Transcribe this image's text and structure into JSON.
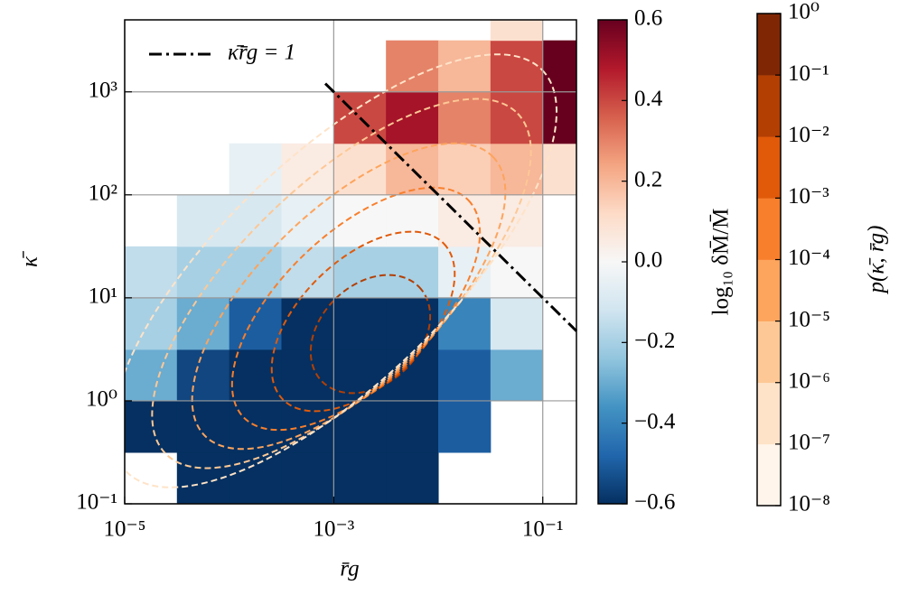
{
  "chart_data": {
    "type": "heatmap",
    "xlabel": "r̄g",
    "ylabel": "κ̄",
    "xscale": "log",
    "yscale": "log",
    "xlim": [
      1e-05,
      0.21
    ],
    "ylim": [
      0.1,
      5000
    ],
    "xticks": [
      {
        "value": 1e-05,
        "label": "10⁻⁵"
      },
      {
        "value": 0.001,
        "label": "10⁻³"
      },
      {
        "value": 0.1,
        "label": "10⁻¹"
      }
    ],
    "yticks": [
      {
        "value": 0.1,
        "label": "10⁻¹"
      },
      {
        "value": 1,
        "label": "10⁰"
      },
      {
        "value": 10,
        "label": "10¹"
      },
      {
        "value": 100,
        "label": "10²"
      },
      {
        "value": 1000,
        "label": "10³"
      }
    ],
    "grid": true,
    "heatmap": {
      "x_edges": [
        1e-05,
        3.16e-05,
        0.0001,
        0.000316,
        0.001,
        0.00316,
        0.01,
        0.0316,
        0.1,
        0.316
      ],
      "y_edges": [
        0.1,
        0.316,
        1,
        3.16,
        10,
        31.6,
        100,
        316,
        1000,
        3162,
        10000
      ],
      "values": [
        [
          null,
          -0.6,
          -0.6,
          -0.6,
          -0.6,
          -0.6,
          null,
          null,
          null
        ],
        [
          -0.6,
          -0.6,
          -0.6,
          -0.6,
          -0.6,
          -0.6,
          -0.5,
          null,
          null
        ],
        [
          -0.3,
          -0.55,
          -0.6,
          -0.6,
          -0.6,
          -0.6,
          -0.5,
          -0.3,
          null
        ],
        [
          -0.2,
          -0.3,
          -0.5,
          -0.6,
          -0.6,
          -0.6,
          -0.4,
          -0.1,
          null
        ],
        [
          -0.15,
          -0.2,
          -0.2,
          -0.15,
          -0.2,
          -0.2,
          -0.05,
          0.0,
          null
        ],
        [
          null,
          -0.1,
          -0.1,
          -0.05,
          0.0,
          0.0,
          0.05,
          0.05,
          null
        ],
        [
          null,
          null,
          -0.05,
          0.05,
          0.1,
          0.2,
          0.15,
          0.2,
          0.1
        ],
        [
          null,
          null,
          null,
          null,
          0.4,
          0.5,
          0.3,
          0.4,
          0.6
        ],
        [
          null,
          null,
          null,
          null,
          null,
          0.3,
          0.2,
          0.4,
          0.6
        ],
        [
          null,
          null,
          null,
          null,
          null,
          null,
          null,
          0.1,
          null
        ]
      ],
      "cmap": [
        "#053061",
        "#2166ac",
        "#4393c3",
        "#92c5de",
        "#d1e5f0",
        "#f7f7f7",
        "#fddbc7",
        "#f4a582",
        "#d6604d",
        "#b2182b",
        "#67001f"
      ],
      "clim": [
        -0.6,
        0.6
      ]
    },
    "colorbar": {
      "label": "log₁₀ δM̄/M̄",
      "ticks": [
        {
          "value": -0.6,
          "label": "−0.6"
        },
        {
          "value": -0.4,
          "label": "−0.4"
        },
        {
          "value": -0.2,
          "label": "−0.2"
        },
        {
          "value": 0,
          "label": "0.0"
        },
        0.2,
        0.4,
        0.6
      ]
    },
    "contours": {
      "label": "p(κ̄, r̄g)",
      "levels": [
        {
          "value": 1e-08,
          "label": "10⁻⁸"
        },
        {
          "value": 1e-07,
          "label": "10⁻⁷"
        },
        {
          "value": 1e-06,
          "label": "10⁻⁶"
        },
        {
          "value": 1e-05,
          "label": "10⁻⁵"
        },
        {
          "value": 0.0001,
          "label": "10⁻⁴"
        },
        {
          "value": 0.001,
          "label": "10⁻³"
        },
        {
          "value": 0.01,
          "label": "10⁻²"
        },
        {
          "value": 0.1,
          "label": "10⁻¹"
        },
        {
          "value": 1,
          "label": "10⁰"
        }
      ],
      "colors": [
        "#fff5eb",
        "#fee3c8",
        "#fdc895",
        "#fda45d",
        "#f87f2c",
        "#e05a0a",
        "#b33f03",
        "#7f2704"
      ]
    },
    "line": {
      "label": "κ̄r̄g = 1",
      "x": [
        0.00083,
        0.21
      ],
      "y": [
        1204,
        4.76
      ],
      "color": "#000000"
    }
  }
}
